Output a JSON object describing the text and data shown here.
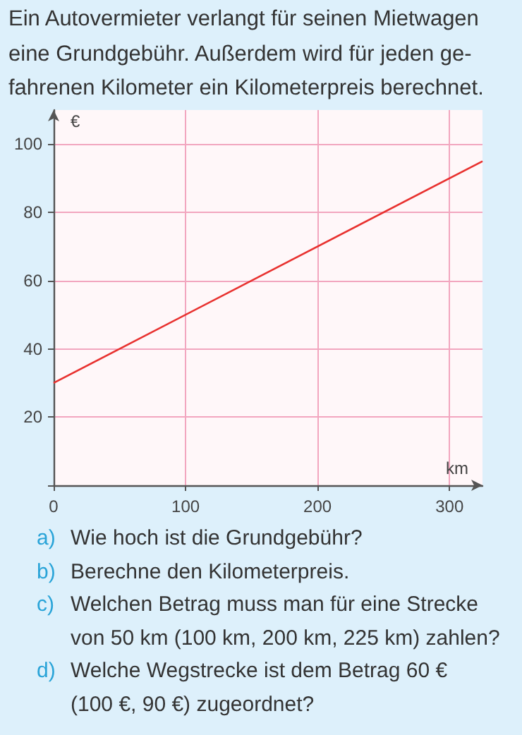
{
  "chart_data": {
    "type": "line",
    "title": "Ein Autovermieter verlangt für seinen Mietwagen\neine Grundgebühr. Außerdem wird für jeden ge-\nfahrenen Kilometer ein Kilometerpreis berechnet.",
    "xlabel": "km",
    "ylabel": "€",
    "x": [
      0,
      325
    ],
    "series": [
      {
        "color": "#e8312f",
        "values": [
          30,
          95
        ]
      }
    ],
    "xlim": [
      0,
      325
    ],
    "ylim": [
      0,
      110
    ],
    "xticks": [
      0,
      100,
      200,
      300
    ],
    "yticks": [
      {
        "value": 0,
        "label": null
      },
      20,
      40,
      60,
      80,
      100
    ],
    "grid": true,
    "marker": "none",
    "line_style": "solid",
    "annotations": [
      "a) Wie hoch ist die Grundgebühr?",
      "b) Berechne den Kilometerpreis.",
      "c) Welchen Betrag muss man für eine Strecke\nvon 50 km (100 km, 200 km, 225 km) zahlen?",
      "d) Welche Wegstrecke ist dem Betrag 60 €\n(100 €, 90 €) zugeordnet?"
    ]
  }
}
